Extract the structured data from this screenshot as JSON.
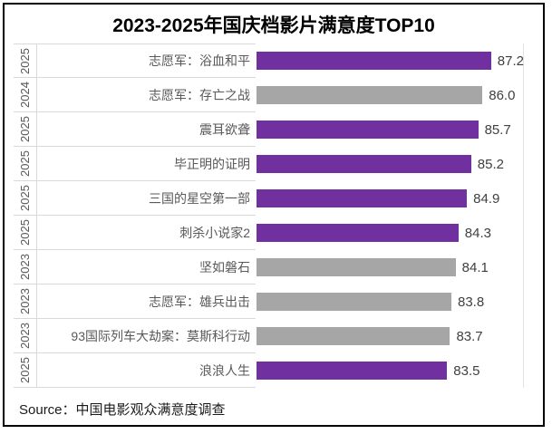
{
  "title": "2023-2025年国庆档影片满意度TOP10",
  "source": "Source：中国电影观众满意度调查",
  "colors": {
    "purple": "#7030A0",
    "gray": "#A6A6A6",
    "label_text": "#595959",
    "value_text": "#404040",
    "grid_line": "#D9D9D9",
    "frame_border": "#000000"
  },
  "chart_data": {
    "type": "bar",
    "orientation": "horizontal",
    "title": "2023-2025年国庆档影片满意度TOP10",
    "xlabel": "",
    "ylabel": "",
    "xlim": [
      70,
      89
    ],
    "grid": false,
    "legend": "none",
    "value_label_decimals": 1,
    "categories_level_outer": [
      "2025",
      "2024",
      "2025",
      "2025",
      "2025",
      "2025",
      "2023",
      "2023",
      "2023",
      "2025"
    ],
    "items": [
      {
        "year": "2025",
        "name": "志愿军：浴血和平",
        "value": 87.2,
        "color": "purple"
      },
      {
        "year": "2024",
        "name": "志愿军：存亡之战",
        "value": 86.0,
        "color": "gray"
      },
      {
        "year": "2025",
        "name": "震耳欲聋",
        "value": 85.7,
        "color": "purple"
      },
      {
        "year": "2025",
        "name": "毕正明的证明",
        "value": 85.2,
        "color": "purple"
      },
      {
        "year": "2025",
        "name": "三国的星空第一部",
        "value": 84.9,
        "color": "purple"
      },
      {
        "year": "2025",
        "name": "刺杀小说家2",
        "value": 84.3,
        "color": "purple"
      },
      {
        "year": "2023",
        "name": "坚如磐石",
        "value": 84.1,
        "color": "gray"
      },
      {
        "year": "2023",
        "name": "志愿军：雄兵出击",
        "value": 83.8,
        "color": "gray"
      },
      {
        "year": "2023",
        "name": "93国际列车大劫案：莫斯科行动",
        "value": 83.7,
        "color": "gray"
      },
      {
        "year": "2025",
        "name": "浪浪人生",
        "value": 83.5,
        "color": "purple"
      }
    ]
  }
}
